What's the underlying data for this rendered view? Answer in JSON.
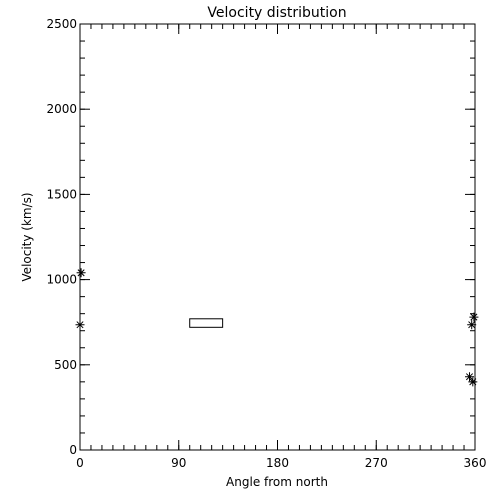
{
  "chart_data": {
    "type": "scatter",
    "title": "Velocity distribution",
    "xlabel": "Angle from north",
    "ylabel": "Velocity (km/s)",
    "xlim": [
      0,
      360
    ],
    "ylim": [
      0,
      2500
    ],
    "x_ticks": [
      0,
      90,
      180,
      270,
      360
    ],
    "x_tick_labels": [
      "0",
      "90",
      "180",
      "270",
      "360"
    ],
    "y_ticks": [
      0,
      500,
      1000,
      1500,
      2000,
      2500
    ],
    "y_tick_labels": [
      "0",
      "500",
      "1000",
      "1500",
      "2000",
      "2500"
    ],
    "x_minor_step": 10,
    "y_minor_step": 100,
    "grid": false,
    "legend": "none",
    "marker": "asterisk",
    "points": [
      {
        "x": 1,
        "y": 1040
      },
      {
        "x": 0,
        "y": 735
      },
      {
        "x": 355,
        "y": 430
      },
      {
        "x": 358,
        "y": 400
      },
      {
        "x": 357,
        "y": 735
      },
      {
        "x": 359,
        "y": 780
      }
    ],
    "annotations": [
      {
        "shape": "rectangle",
        "x_range": [
          100,
          130
        ],
        "y_range": [
          720,
          770
        ]
      }
    ],
    "colors": {
      "foreground": "#000000",
      "background": "#ffffff"
    }
  }
}
